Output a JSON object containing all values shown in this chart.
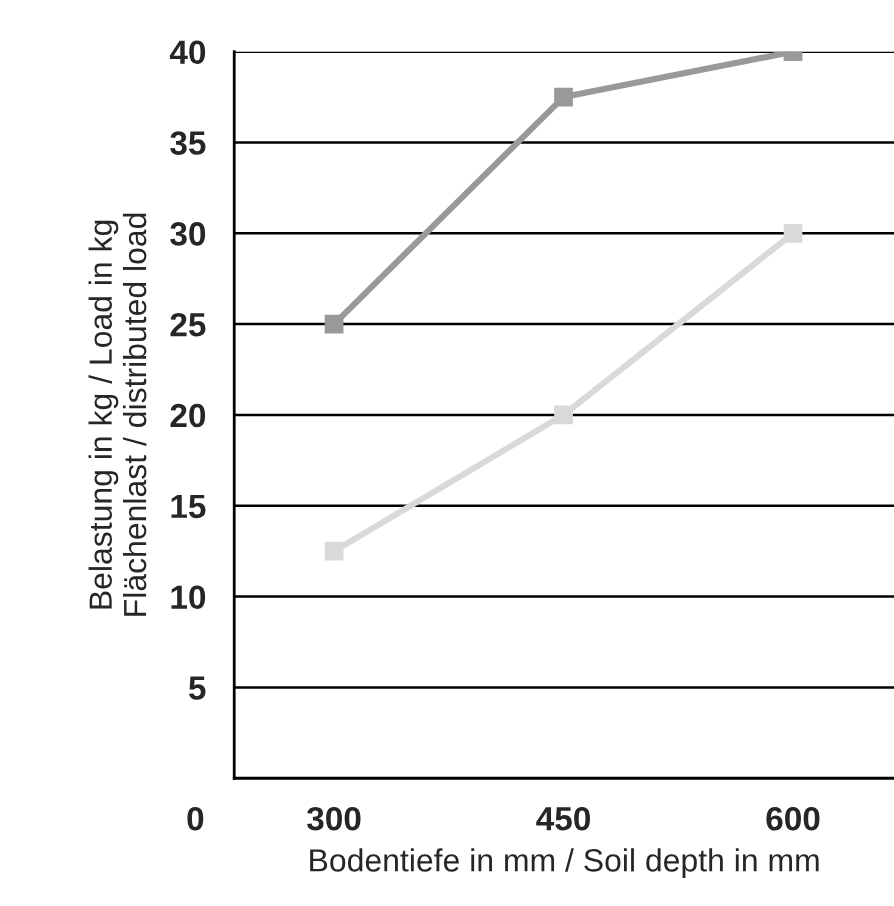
{
  "chart_data": {
    "type": "line",
    "xlabel": "Bodentiefe in mm / Soil depth in mm",
    "ylabel": "Belastung in kg / Load in kg\nFlächenlast / distributed load",
    "categories": [
      "300",
      "450",
      "600"
    ],
    "series": [
      {
        "color": "#999999",
        "values": [
          25,
          37.5,
          40
        ]
      },
      {
        "color": "#d9d9d9",
        "values": [
          12.5,
          20,
          30
        ]
      }
    ],
    "ylim": [
      0,
      40
    ],
    "yticks": [
      5,
      10,
      15,
      20,
      25,
      30,
      35,
      40
    ],
    "grid": "y",
    "marker": "square",
    "line_style": "solid",
    "legend": false,
    "annotations": [
      "0"
    ]
  }
}
